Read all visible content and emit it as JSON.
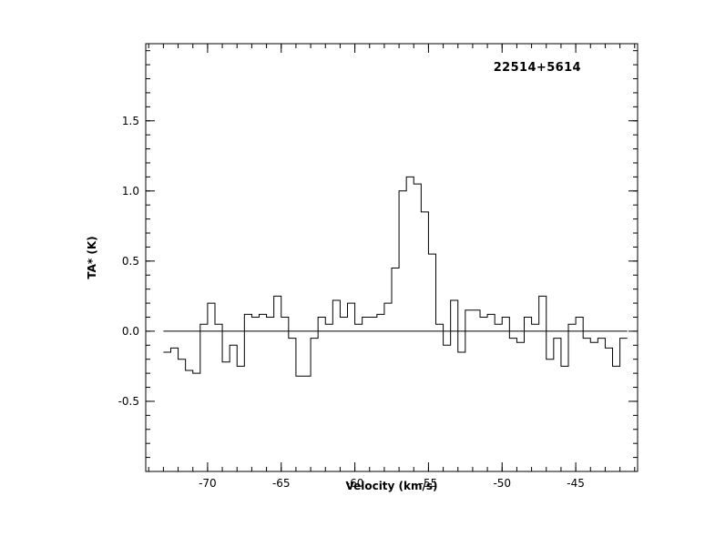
{
  "page": {
    "background": "#ffffff",
    "foreground": "#000000"
  },
  "chart_data": {
    "type": "line",
    "style": "histogram-step",
    "title": "22514+5614",
    "xlabel": "Velocity (km/s)",
    "ylabel": "TA* (K)",
    "xlim": [
      -74.2,
      -40.8
    ],
    "ylim": [
      -1.0,
      2.05
    ],
    "grid": false,
    "legend": "none",
    "line_color": "#000000",
    "zero_line": 0.0,
    "channel_width": 0.5,
    "x_minor_step": 1,
    "y_minor_step": 0.1,
    "x_major_ticks": [
      {
        "v": -70,
        "label": "-70"
      },
      {
        "v": -65,
        "label": "-65"
      },
      {
        "v": -60,
        "label": "-60"
      },
      {
        "v": -55,
        "label": "-55"
      },
      {
        "v": -50,
        "label": "-50"
      },
      {
        "v": -45,
        "label": "-45"
      }
    ],
    "y_major_ticks": [
      {
        "v": -0.5,
        "label": "-0.5"
      },
      {
        "v": 0.0,
        "label": "0.0"
      },
      {
        "v": 0.5,
        "label": "0.5"
      },
      {
        "v": 1.0,
        "label": "1.0"
      },
      {
        "v": 1.5,
        "label": "1.5"
      }
    ],
    "x": [
      -72.75,
      -72.25,
      -71.75,
      -71.25,
      -70.75,
      -70.25,
      -69.75,
      -69.25,
      -68.75,
      -68.25,
      -67.75,
      -67.25,
      -66.75,
      -66.25,
      -65.75,
      -65.25,
      -64.75,
      -64.25,
      -63.75,
      -63.25,
      -62.75,
      -62.25,
      -61.75,
      -61.25,
      -60.75,
      -60.25,
      -59.75,
      -59.25,
      -58.75,
      -58.25,
      -57.75,
      -57.25,
      -56.75,
      -56.25,
      -55.75,
      -55.25,
      -54.75,
      -54.25,
      -53.75,
      -53.25,
      -52.75,
      -52.25,
      -51.75,
      -51.25,
      -50.75,
      -50.25,
      -49.75,
      -49.25,
      -48.75,
      -48.25,
      -47.75,
      -47.25,
      -46.75,
      -46.25,
      -45.75,
      -45.25,
      -44.75,
      -44.25,
      -43.75,
      -43.25,
      -42.75,
      -42.25,
      -41.75
    ],
    "y": [
      -0.15,
      -0.12,
      -0.2,
      -0.28,
      -0.3,
      0.05,
      0.2,
      0.05,
      -0.22,
      -0.1,
      -0.25,
      0.12,
      0.1,
      0.12,
      0.1,
      0.25,
      0.1,
      -0.05,
      -0.32,
      -0.32,
      -0.05,
      0.1,
      0.05,
      0.22,
      0.1,
      0.2,
      0.05,
      0.1,
      0.1,
      0.12,
      0.2,
      0.45,
      1.0,
      1.1,
      1.05,
      0.85,
      0.55,
      0.05,
      -0.1,
      0.22,
      -0.15,
      0.15,
      0.15,
      0.1,
      0.12,
      0.05,
      0.1,
      -0.05,
      -0.08,
      0.1,
      0.05,
      0.25,
      -0.2,
      -0.05,
      -0.25,
      0.05,
      0.1,
      -0.05,
      -0.08,
      -0.05,
      -0.12,
      -0.25,
      -0.05
    ]
  }
}
